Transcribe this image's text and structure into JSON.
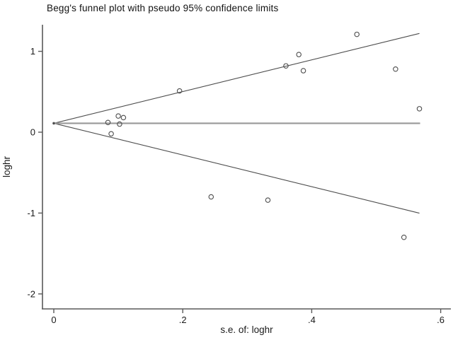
{
  "chart_data": {
    "type": "scatter",
    "subtype": "funnel-plot",
    "title": "Begg's funnel plot with pseudo 95% confidence limits",
    "xlabel": "s.e. of: loghr",
    "ylabel": "loghr",
    "xlim": [
      -0.017,
      0.616
    ],
    "ylim": [
      -2.19,
      1.33
    ],
    "grid": false,
    "legend": "none",
    "x_ticks": [
      {
        "v": 0.0,
        "label": "0"
      },
      {
        "v": 0.2,
        "label": ".2"
      },
      {
        "v": 0.4,
        "label": ".4"
      },
      {
        "v": 0.6,
        "label": ".6"
      }
    ],
    "y_ticks": [
      {
        "v": 1,
        "label": "1"
      },
      {
        "v": 0,
        "label": "0"
      },
      {
        "v": -1,
        "label": "-1"
      },
      {
        "v": -2,
        "label": "-2"
      }
    ],
    "points": [
      {
        "x": 0.084,
        "y": 0.12
      },
      {
        "x": 0.089,
        "y": -0.02
      },
      {
        "x": 0.1,
        "y": 0.2
      },
      {
        "x": 0.102,
        "y": 0.1
      },
      {
        "x": 0.108,
        "y": 0.18
      },
      {
        "x": 0.195,
        "y": 0.51
      },
      {
        "x": 0.244,
        "y": -0.8
      },
      {
        "x": 0.332,
        "y": -0.84
      },
      {
        "x": 0.36,
        "y": 0.82
      },
      {
        "x": 0.38,
        "y": 0.96
      },
      {
        "x": 0.387,
        "y": 0.76
      },
      {
        "x": 0.47,
        "y": 1.21
      },
      {
        "x": 0.53,
        "y": 0.78
      },
      {
        "x": 0.543,
        "y": -1.3
      },
      {
        "x": 0.567,
        "y": 0.29
      }
    ],
    "funnel": {
      "pooled_estimate": 0.11,
      "z": 1.96,
      "se_min": 0,
      "se_max": 0.567
    },
    "colors": {
      "axis": "#595959",
      "tick_text": "#1a1a1a",
      "funnel_limit_line": "#4d4d4d",
      "pooled_line": "#999999",
      "marker_stroke": "#4d4d4d",
      "marker_fill": "#ffffff",
      "background": "#ffffff"
    }
  }
}
